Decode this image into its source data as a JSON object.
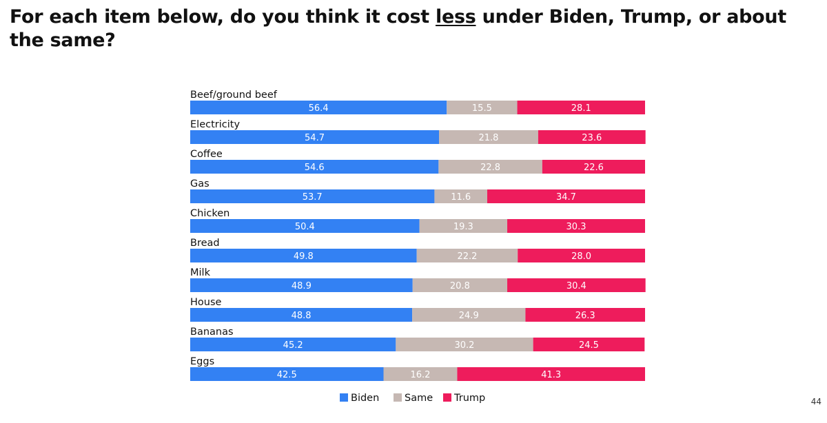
{
  "title": {
    "before": "For each item below, do you think it cost ",
    "emphasis": "less",
    "after": " under Biden, Trump, or about the same?"
  },
  "page_number": "44",
  "chart_data": {
    "type": "bar",
    "orientation": "horizontal",
    "stacked": true,
    "title": "For each item below, do you think it cost less under Biden, Trump, or about the same?",
    "xlabel": "",
    "ylabel": "",
    "xlim": [
      0,
      100
    ],
    "grid": false,
    "legend_position": "bottom-center",
    "categories": [
      "Beef/ground beef",
      "Electricity",
      "Coffee",
      "Gas",
      "Chicken",
      "Bread",
      "Milk",
      "House",
      "Bananas",
      "Eggs"
    ],
    "series": [
      {
        "name": "Biden",
        "color": "#3381f3",
        "values": [
          56.4,
          54.7,
          54.6,
          53.7,
          50.4,
          49.8,
          48.9,
          48.8,
          45.2,
          42.5
        ]
      },
      {
        "name": "Same",
        "color": "#c6b8b3",
        "values": [
          15.5,
          21.8,
          22.8,
          11.6,
          19.3,
          22.2,
          20.8,
          24.9,
          30.2,
          16.2
        ]
      },
      {
        "name": "Trump",
        "color": "#ee1c5c",
        "values": [
          28.1,
          23.6,
          22.6,
          34.7,
          30.3,
          28.0,
          30.4,
          26.3,
          24.5,
          41.3
        ]
      }
    ]
  }
}
